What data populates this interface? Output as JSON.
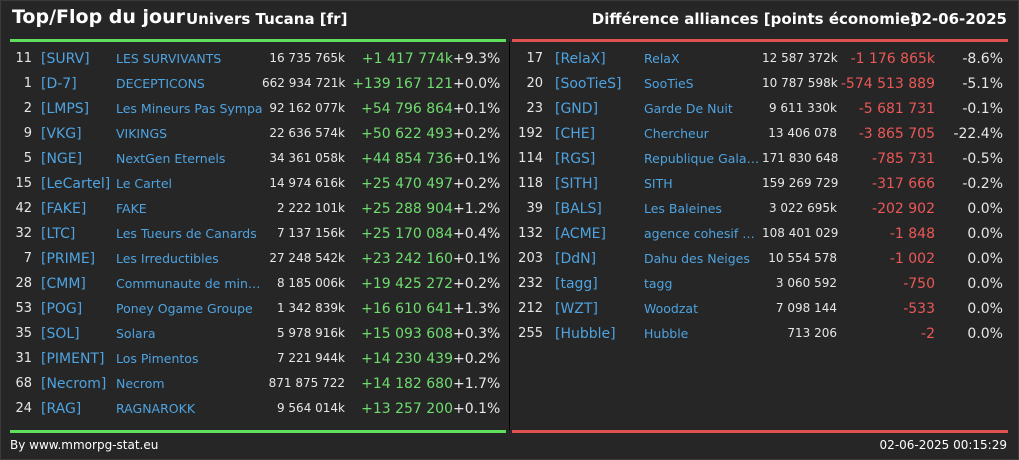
{
  "header": {
    "title": "Top/Flop du jour",
    "subtitle": "Univers Tucana [fr]",
    "right_title": "Différence alliances [points économie]",
    "date": "02-06-2025"
  },
  "colors": {
    "positive": "#6fdc6f",
    "negative": "#ec5757",
    "link": "#4ea3e0",
    "top_bar": "#5ee05e",
    "flop_bar": "#e05252"
  },
  "top": [
    {
      "rank": "11",
      "tag": "[SURV]",
      "name": "LES SURVIVANTS",
      "points": "16 735 765k",
      "diff": "+1 417 774k",
      "pct": "+9.3%"
    },
    {
      "rank": "1",
      "tag": "[D-7]",
      "name": "DECEPTICONS",
      "points": "662 934 721k",
      "diff": "+139 167 121",
      "pct": "+0.0%"
    },
    {
      "rank": "2",
      "tag": "[LMPS]",
      "name": "Les Mineurs Pas Sympa",
      "points": "92 162 077k",
      "diff": "+54 796 864",
      "pct": "+0.1%"
    },
    {
      "rank": "9",
      "tag": "[VKG]",
      "name": "VIKINGS",
      "points": "22 636 574k",
      "diff": "+50 622 493",
      "pct": "+0.2%"
    },
    {
      "rank": "5",
      "tag": "[NGE]",
      "name": "NextGen Eternels",
      "points": "34 361 058k",
      "diff": "+44 854 736",
      "pct": "+0.1%"
    },
    {
      "rank": "15",
      "tag": "[LeCartel]",
      "name": "Le Cartel",
      "points": "14 974 616k",
      "diff": "+25 470 497",
      "pct": "+0.2%"
    },
    {
      "rank": "42",
      "tag": "[FAKE]",
      "name": "FAKE",
      "points": "2 222 101k",
      "diff": "+25 288 904",
      "pct": "+1.2%"
    },
    {
      "rank": "32",
      "tag": "[LTC]",
      "name": "Les Tueurs de Canards",
      "points": "7 137 156k",
      "diff": "+25 170 084",
      "pct": "+0.4%"
    },
    {
      "rank": "7",
      "tag": "[PRIME]",
      "name": "Les Irreductibles",
      "points": "27 248 542k",
      "diff": "+23 242 160",
      "pct": "+0.1%"
    },
    {
      "rank": "28",
      "tag": "[CMM]",
      "name": "Communaute de mineurs",
      "points": "8 185 006k",
      "diff": "+19 425 272",
      "pct": "+0.2%"
    },
    {
      "rank": "53",
      "tag": "[POG]",
      "name": "Poney Ogame Groupe",
      "points": "1 342 839k",
      "diff": "+16 610 641",
      "pct": "+1.3%"
    },
    {
      "rank": "35",
      "tag": "[SOL]",
      "name": "Solara",
      "points": "5 978 916k",
      "diff": "+15 093 608",
      "pct": "+0.3%"
    },
    {
      "rank": "31",
      "tag": "[PIMENT]",
      "name": "Los Pimentos",
      "points": "7 221 944k",
      "diff": "+14 230 439",
      "pct": "+0.2%"
    },
    {
      "rank": "68",
      "tag": "[Necrom]",
      "name": "Necrom",
      "points": "871 875 722",
      "diff": "+14 182 680",
      "pct": "+1.7%"
    },
    {
      "rank": "24",
      "tag": "[RAG]",
      "name": "RAGNAROKK",
      "points": "9 564 014k",
      "diff": "+13 257 200",
      "pct": "+0.1%"
    }
  ],
  "flop": [
    {
      "rank": "17",
      "tag": "[RelaX]",
      "name": "RelaX",
      "points": "12 587 372k",
      "diff": "-1 176 865k",
      "pct": "-8.6%"
    },
    {
      "rank": "20",
      "tag": "[SooTieS]",
      "name": "SooTieS",
      "points": "10 787 598k",
      "diff": "-574 513 889",
      "pct": "-5.1%"
    },
    {
      "rank": "23",
      "tag": "[GND]",
      "name": "Garde De Nuit",
      "points": "9 611 330k",
      "diff": "-5 681 731",
      "pct": "-0.1%"
    },
    {
      "rank": "192",
      "tag": "[CHE]",
      "name": "Chercheur",
      "points": "13 406 078",
      "diff": "-3 865 705",
      "pct": "-22.4%"
    },
    {
      "rank": "114",
      "tag": "[RGS]",
      "name": "Republique Galacti...",
      "points": "171 830 648",
      "diff": "-785 731",
      "pct": "-0.5%"
    },
    {
      "rank": "118",
      "tag": "[SITH]",
      "name": "SITH",
      "points": "159 269 729",
      "diff": "-317 666",
      "pct": "-0.2%"
    },
    {
      "rank": "39",
      "tag": "[BALS]",
      "name": "Les Baleines",
      "points": "3 022 695k",
      "diff": "-202 902",
      "pct": "0.0%"
    },
    {
      "rank": "132",
      "tag": "[ACME]",
      "name": "agence cohesif m...",
      "points": "108 401 029",
      "diff": "-1 848",
      "pct": "0.0%"
    },
    {
      "rank": "203",
      "tag": "[DdN]",
      "name": "Dahu des Neiges",
      "points": "10 554 578",
      "diff": "-1 002",
      "pct": "0.0%"
    },
    {
      "rank": "232",
      "tag": "[tagg]",
      "name": "tagg",
      "points": "3 060 592",
      "diff": "-750",
      "pct": "0.0%"
    },
    {
      "rank": "212",
      "tag": "[WZT]",
      "name": "Woodzat",
      "points": "7 098 144",
      "diff": "-533",
      "pct": "0.0%"
    },
    {
      "rank": "255",
      "tag": "[Hubble]",
      "name": "Hubble",
      "points": "713 206",
      "diff": "-2",
      "pct": "0.0%"
    }
  ],
  "footer": {
    "credit": "By www.mmorpg-stat.eu",
    "timestamp": "02-06-2025 00:15:29"
  }
}
